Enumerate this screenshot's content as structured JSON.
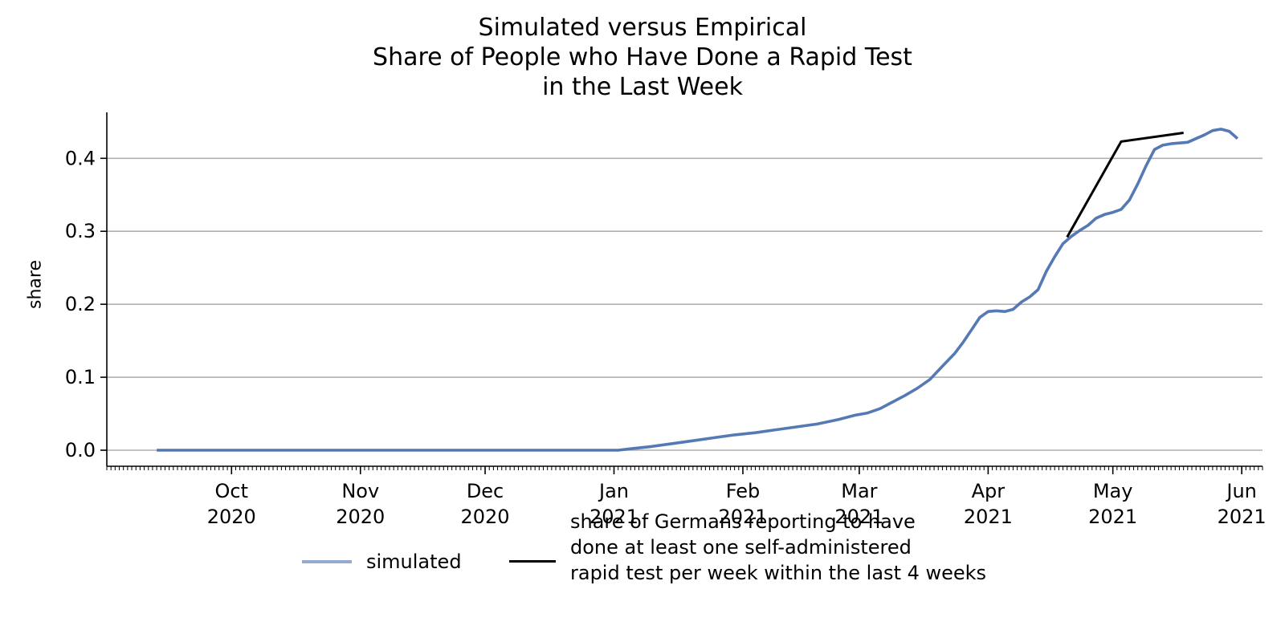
{
  "chart_data": {
    "type": "line",
    "title_lines": [
      "Simulated versus Empirical",
      "Share of People who Have Done a Rapid Test",
      "in the Last Week"
    ],
    "xlabel": "",
    "ylabel": "share",
    "ylim": [
      -0.022,
      0.463
    ],
    "xlim": [
      "2020-09-01",
      "2021-06-06"
    ],
    "yticks": [
      0.0,
      0.1,
      0.2,
      0.3,
      0.4
    ],
    "ytick_labels": [
      "0.0",
      "0.1",
      "0.2",
      "0.3",
      "0.4"
    ],
    "xticks": [
      {
        "date": "2020-10-01",
        "label": [
          "Oct",
          "2020"
        ]
      },
      {
        "date": "2020-11-01",
        "label": [
          "Nov",
          "2020"
        ]
      },
      {
        "date": "2020-12-01",
        "label": [
          "Dec",
          "2020"
        ]
      },
      {
        "date": "2021-01-01",
        "label": [
          "Jan",
          "2021"
        ]
      },
      {
        "date": "2021-02-01",
        "label": [
          "Feb",
          "2021"
        ]
      },
      {
        "date": "2021-03-01",
        "label": [
          "Mar",
          "2021"
        ]
      },
      {
        "date": "2021-04-01",
        "label": [
          "Apr",
          "2021"
        ]
      },
      {
        "date": "2021-05-01",
        "label": [
          "May",
          "2021"
        ]
      },
      {
        "date": "2021-06-01",
        "label": [
          "Jun",
          "2021"
        ]
      }
    ],
    "grid": "horizontal",
    "legend_placement": "bottom-center",
    "series": [
      {
        "name": "simulated",
        "color": "#4c72b0",
        "points": [
          [
            "2020-09-13",
            0.0
          ],
          [
            "2020-10-01",
            0.0
          ],
          [
            "2020-11-01",
            0.0
          ],
          [
            "2020-12-01",
            0.0
          ],
          [
            "2021-01-02",
            0.0
          ],
          [
            "2021-01-05",
            0.002
          ],
          [
            "2021-01-10",
            0.005
          ],
          [
            "2021-01-15",
            0.009
          ],
          [
            "2021-01-20",
            0.013
          ],
          [
            "2021-01-25",
            0.017
          ],
          [
            "2021-01-30",
            0.021
          ],
          [
            "2021-02-04",
            0.024
          ],
          [
            "2021-02-09",
            0.028
          ],
          [
            "2021-02-14",
            0.032
          ],
          [
            "2021-02-19",
            0.036
          ],
          [
            "2021-02-24",
            0.042
          ],
          [
            "2021-02-28",
            0.048
          ],
          [
            "2021-03-03",
            0.051
          ],
          [
            "2021-03-06",
            0.057
          ],
          [
            "2021-03-09",
            0.066
          ],
          [
            "2021-03-12",
            0.075
          ],
          [
            "2021-03-15",
            0.085
          ],
          [
            "2021-03-18",
            0.097
          ],
          [
            "2021-03-21",
            0.115
          ],
          [
            "2021-03-24",
            0.133
          ],
          [
            "2021-03-26",
            0.148
          ],
          [
            "2021-03-28",
            0.165
          ],
          [
            "2021-03-30",
            0.182
          ],
          [
            "2021-04-01",
            0.19
          ],
          [
            "2021-04-03",
            0.191
          ],
          [
            "2021-04-05",
            0.19
          ],
          [
            "2021-04-07",
            0.193
          ],
          [
            "2021-04-09",
            0.203
          ],
          [
            "2021-04-11",
            0.21
          ],
          [
            "2021-04-13",
            0.22
          ],
          [
            "2021-04-15",
            0.245
          ],
          [
            "2021-04-17",
            0.265
          ],
          [
            "2021-04-19",
            0.283
          ],
          [
            "2021-04-21",
            0.293
          ],
          [
            "2021-04-23",
            0.301
          ],
          [
            "2021-04-25",
            0.308
          ],
          [
            "2021-04-27",
            0.318
          ],
          [
            "2021-04-29",
            0.323
          ],
          [
            "2021-05-01",
            0.326
          ],
          [
            "2021-05-03",
            0.33
          ],
          [
            "2021-05-05",
            0.343
          ],
          [
            "2021-05-07",
            0.365
          ],
          [
            "2021-05-09",
            0.39
          ],
          [
            "2021-05-11",
            0.412
          ],
          [
            "2021-05-13",
            0.418
          ],
          [
            "2021-05-15",
            0.42
          ],
          [
            "2021-05-17",
            0.421
          ],
          [
            "2021-05-19",
            0.422
          ],
          [
            "2021-05-21",
            0.427
          ],
          [
            "2021-05-23",
            0.432
          ],
          [
            "2021-05-25",
            0.438
          ],
          [
            "2021-05-27",
            0.44
          ],
          [
            "2021-05-29",
            0.437
          ],
          [
            "2021-05-31",
            0.427
          ]
        ]
      },
      {
        "name": "share of Germans reporting to have done at least one self-administered rapid test per week within the last 4 weeks",
        "legend_lines": [
          "share of Germans reporting to have",
          "done at least one self-administered",
          "rapid test per week within the last 4 weeks"
        ],
        "color": "#000000",
        "points": [
          [
            "2021-04-20",
            0.292
          ],
          [
            "2021-05-03",
            0.423
          ],
          [
            "2021-05-18",
            0.435
          ]
        ]
      }
    ]
  }
}
